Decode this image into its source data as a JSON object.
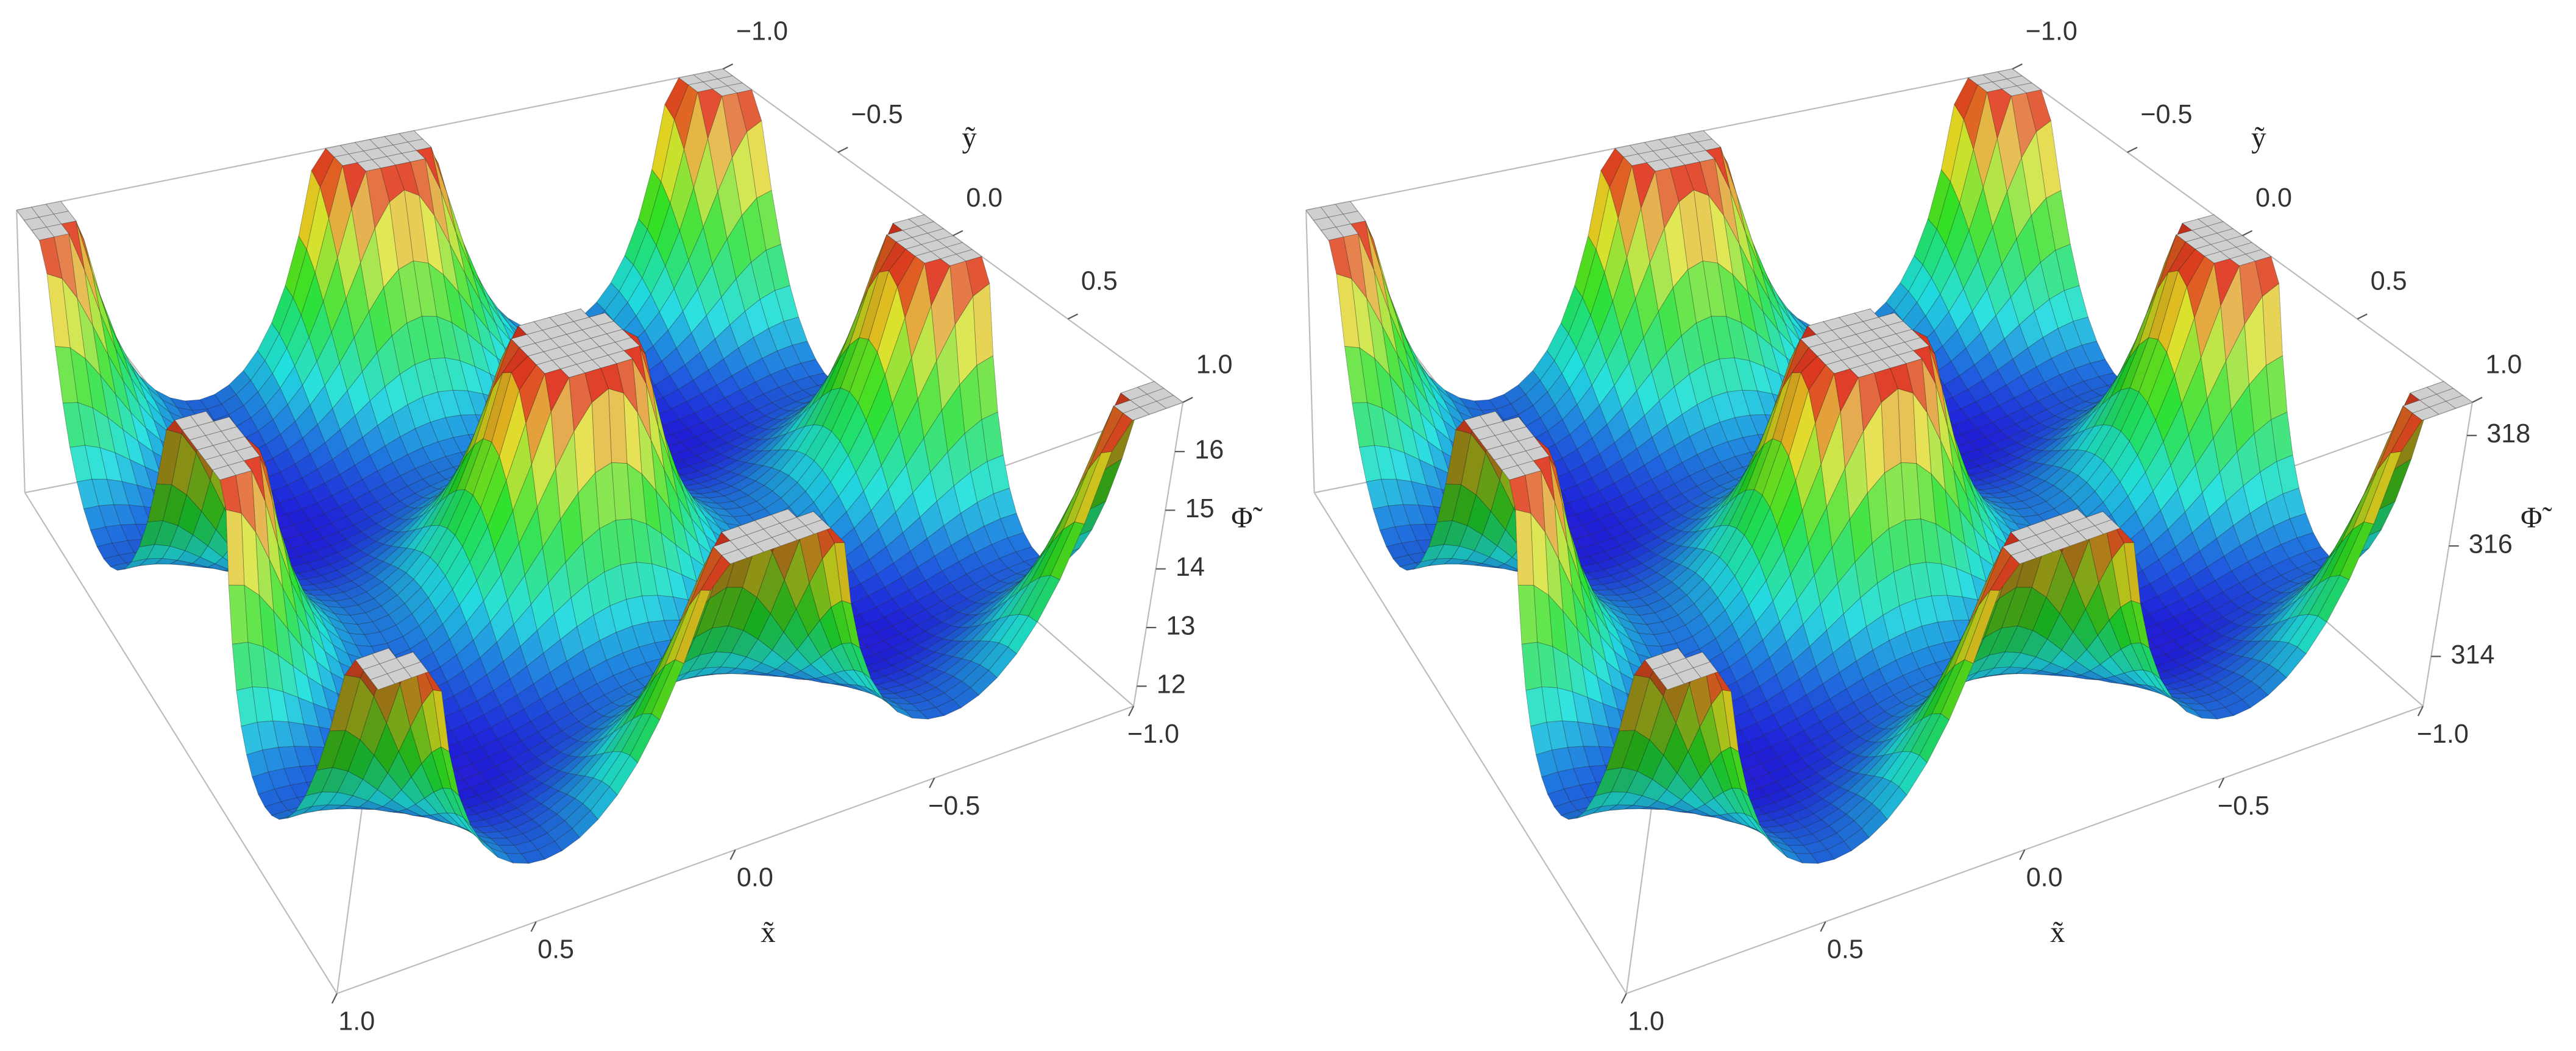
{
  "chart_data": [
    {
      "type": "surface",
      "xlabel": "x̃",
      "ylabel": "ỹ",
      "zlabel": "Φ̃",
      "xlim": [
        -1,
        1
      ],
      "xticks": [
        {
          "value": -1,
          "label": "−1.0"
        },
        {
          "value": -0.5,
          "label": "−0.5"
        },
        {
          "value": 0,
          "label": "0.0"
        },
        {
          "value": 0.5,
          "label": "0.5"
        },
        {
          "value": 1,
          "label": "1.0"
        }
      ],
      "ylim": [
        -1,
        1
      ],
      "yticks": [
        {
          "value": -1,
          "label": "−1.0"
        },
        {
          "value": -0.5,
          "label": "−0.5"
        },
        {
          "value": 0,
          "label": "0.0"
        },
        {
          "value": 0.5,
          "label": "0.5"
        },
        {
          "value": 1,
          "label": "1.0"
        }
      ],
      "zlim": [
        11.66,
        16.84
      ],
      "zticks": [
        12,
        13,
        14,
        15,
        16
      ]
    },
    {
      "type": "surface",
      "xlabel": "x̃",
      "ylabel": "ỹ",
      "zlabel": "Φ̃",
      "xlim": [
        -1,
        1
      ],
      "xticks": [
        {
          "value": -1,
          "label": "−1.0"
        },
        {
          "value": -0.5,
          "label": "−0.5"
        },
        {
          "value": 0,
          "label": "0.0"
        },
        {
          "value": 0.5,
          "label": "0.5"
        },
        {
          "value": 1,
          "label": "1.0"
        }
      ],
      "ylim": [
        -1,
        1
      ],
      "yticks": [
        {
          "value": -1,
          "label": "−1.0"
        },
        {
          "value": -0.5,
          "label": "−0.5"
        },
        {
          "value": 0,
          "label": "0.0"
        },
        {
          "value": 0.5,
          "label": "0.5"
        },
        {
          "value": 1,
          "label": "1.0"
        }
      ],
      "zlim": [
        313.1,
        318.6
      ],
      "zticks": [
        314,
        316,
        318
      ]
    }
  ]
}
